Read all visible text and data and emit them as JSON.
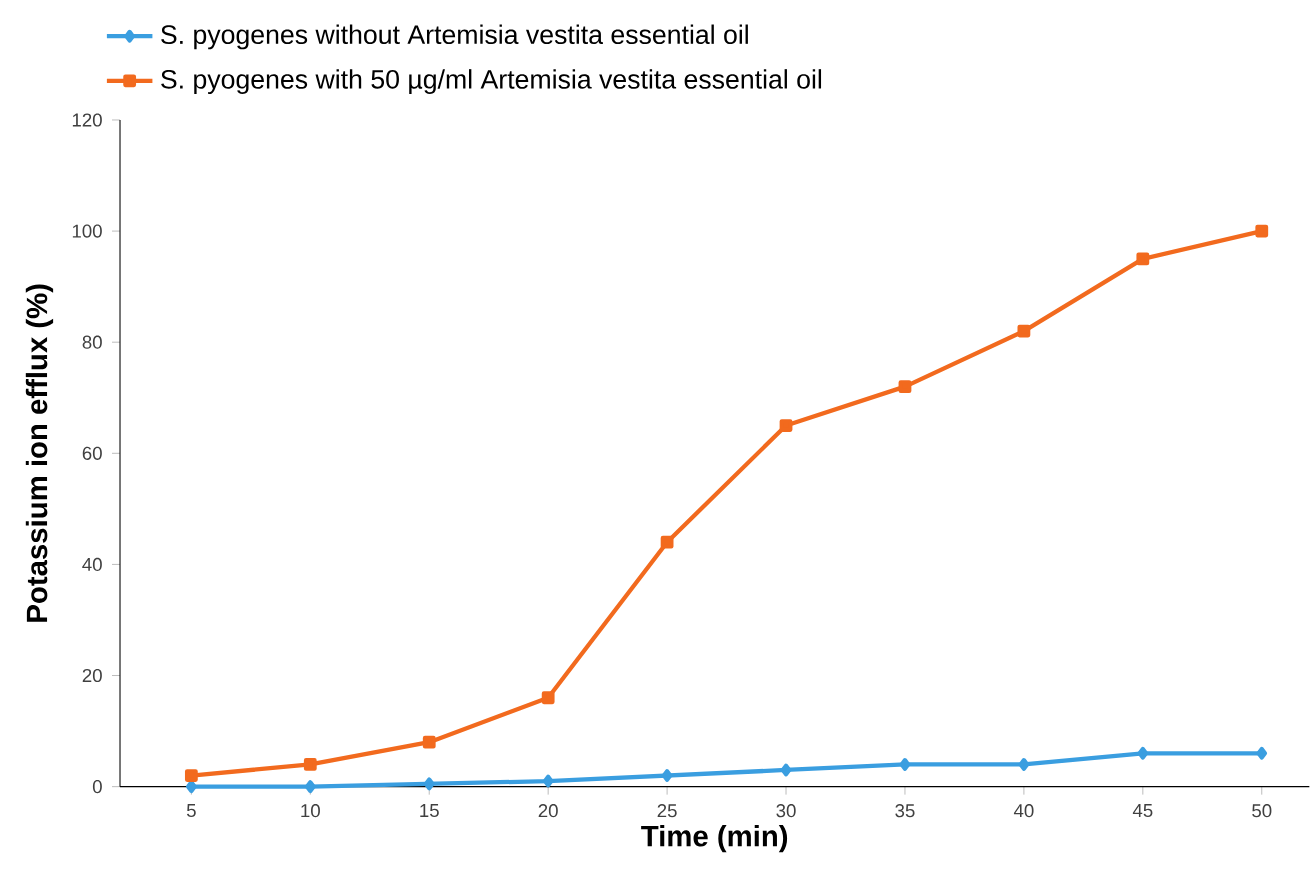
{
  "chart_data": {
    "type": "line",
    "xlabel": "Time (min)",
    "ylabel": "Potassium ion efflux (%)",
    "x": [
      5,
      10,
      15,
      20,
      25,
      30,
      35,
      40,
      45,
      50
    ],
    "xlim": [
      2,
      52
    ],
    "xticks": [
      5,
      10,
      15,
      20,
      25,
      30,
      35,
      40,
      45,
      50
    ],
    "ylim": [
      0,
      120
    ],
    "yticks": [
      0,
      20,
      40,
      60,
      80,
      100,
      120
    ],
    "grid": false,
    "legend": "top left",
    "line_style": "solid",
    "series": [
      {
        "name": "S. pyogenes without Artemisia vestita essential oil",
        "color": "#3a9ee0",
        "marker": "diamond",
        "values": [
          0,
          0,
          0.5,
          1,
          2,
          3,
          4,
          4,
          6,
          6
        ]
      },
      {
        "name": "S. pyogenes with 50 µg/ml Artemisia vestita essential oil",
        "color": "#f26a1e",
        "marker": "square",
        "values": [
          2,
          4,
          8,
          16,
          44,
          65,
          72,
          82,
          95,
          100
        ]
      }
    ]
  }
}
